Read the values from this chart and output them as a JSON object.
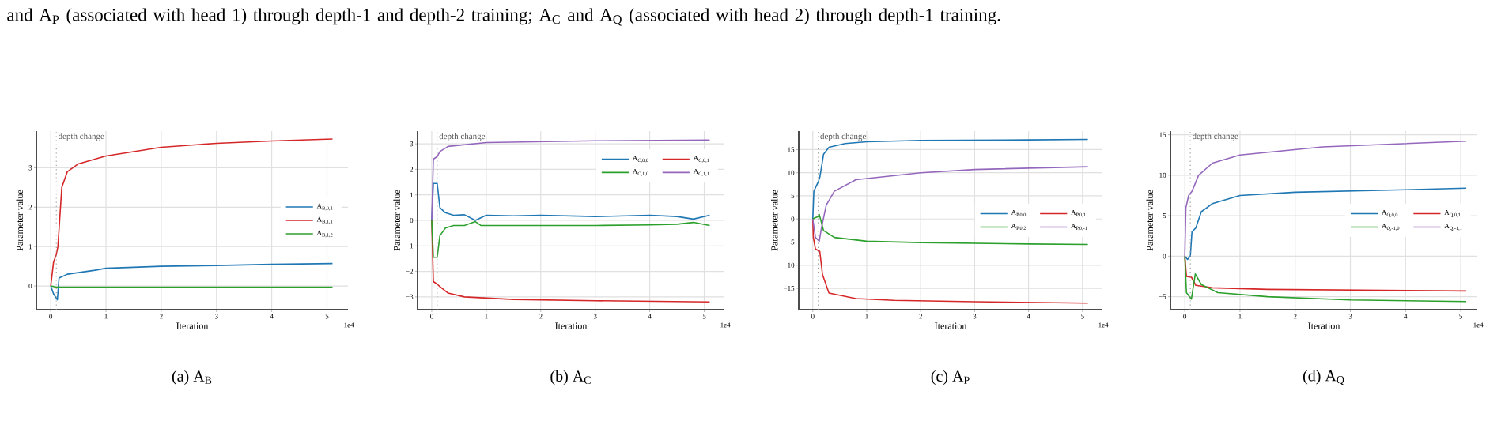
{
  "chart_data": [
    {
      "type": "line",
      "title": "(a) A$_{B}$",
      "xlabel": "Iteration",
      "ylabel": "Parameter value",
      "annotations": [
        "and A$_{P}$ (associated with head 1) through depth-1 and depth-2 training; A$_{C}$ and A$_{Q}$ (associated with head 2) through depth-1 training.",
        "1e4"
      ],
      "xlim": [
        -0.26,
        5.38
      ],
      "ylim": [
        -0.6,
        3.93
      ],
      "xticks": [
        0,
        1,
        2,
        3,
        4,
        5
      ],
      "yticks": [
        0,
        1,
        2,
        3
      ],
      "grid": true,
      "legend": "right",
      "ref_lines": [
        {
          "axis": "x",
          "value": 0.1,
          "label": "depth change",
          "color": "#999999",
          "line_style": "dotted"
        }
      ],
      "series": [
        {
          "name": "A$_{B,0,1}$",
          "color": "#1f77b4",
          "x": [
            0,
            0.05,
            0.12,
            0.15,
            0.3,
            0.8,
            1,
            2,
            3,
            4,
            5.1
          ],
          "values": [
            0,
            -0.2,
            -0.35,
            0.2,
            0.3,
            0.4,
            0.45,
            0.5,
            0.52,
            0.55,
            0.57
          ]
        },
        {
          "name": "A$_{B,1,1}$",
          "color": "#d62728",
          "x": [
            0,
            0.05,
            0.1,
            0.13,
            0.2,
            0.3,
            0.5,
            1,
            2,
            3,
            4,
            5.1
          ],
          "values": [
            0,
            0.6,
            0.8,
            1.0,
            2.5,
            2.9,
            3.1,
            3.3,
            3.52,
            3.62,
            3.68,
            3.73
          ]
        },
        {
          "name": "A$_{B,1,2}$",
          "color": "#2ca02c",
          "x": [
            0,
            0.1,
            5.1
          ],
          "values": [
            0,
            -0.03,
            -0.03
          ]
        }
      ]
    },
    {
      "type": "line",
      "title": "(b) A$_{C}$",
      "xlabel": "Iteration",
      "ylabel": "Parameter value",
      "annotations": [
        "1e4"
      ],
      "xlim": [
        -0.26,
        5.37
      ],
      "ylim": [
        -3.5,
        3.5
      ],
      "xticks": [
        0,
        1,
        2,
        3,
        4,
        5
      ],
      "yticks": [
        {
          "value": -3,
          "label": "−3"
        },
        {
          "value": -2,
          "label": "−2"
        },
        {
          "value": -1,
          "label": "−1"
        },
        0,
        1,
        2,
        3
      ],
      "grid": true,
      "legend": "top right",
      "ref_lines": [
        {
          "axis": "x",
          "value": 0.1,
          "label": "depth change",
          "color": "#999999",
          "line_style": "dotted"
        }
      ],
      "series": [
        {
          "name": "A$_{C,0,0}$",
          "color": "#1f77b4",
          "x": [
            0,
            0.03,
            0.1,
            0.15,
            0.25,
            0.4,
            0.6,
            0.8,
            1,
            1.5,
            2,
            3,
            4,
            4.5,
            4.8,
            5.1
          ],
          "values": [
            0,
            1.45,
            1.45,
            0.5,
            0.3,
            0.2,
            0.22,
            0.0,
            0.2,
            0.18,
            0.2,
            0.15,
            0.2,
            0.15,
            0.05,
            0.2
          ]
        },
        {
          "name": "A$_{C,0,1}$",
          "color": "#d62728",
          "x": [
            0,
            0.03,
            0.1,
            0.15,
            0.3,
            0.6,
            1.5,
            3,
            5.1
          ],
          "values": [
            0,
            -2.4,
            -2.5,
            -2.6,
            -2.85,
            -3.0,
            -3.1,
            -3.15,
            -3.2
          ]
        },
        {
          "name": "A$_{C,1,0}$",
          "color": "#2ca02c",
          "x": [
            0,
            0.03,
            0.1,
            0.15,
            0.25,
            0.4,
            0.6,
            0.8,
            0.9,
            1.5,
            2,
            3,
            4,
            4.5,
            4.8,
            5.1
          ],
          "values": [
            0,
            -1.45,
            -1.45,
            -0.6,
            -0.3,
            -0.2,
            -0.2,
            -0.05,
            -0.2,
            -0.2,
            -0.2,
            -0.2,
            -0.18,
            -0.15,
            -0.08,
            -0.2
          ]
        },
        {
          "name": "A$_{C,1,1}$",
          "color": "#9467bd",
          "x": [
            0,
            0.03,
            0.1,
            0.15,
            0.3,
            1,
            3,
            5.1
          ],
          "values": [
            0,
            2.4,
            2.5,
            2.7,
            2.9,
            3.05,
            3.12,
            3.15
          ]
        }
      ]
    },
    {
      "type": "line",
      "title": "(c) A$_{P}$",
      "xlabel": "Iteration",
      "ylabel": "Parameter value",
      "annotations": [
        "1e4"
      ],
      "xlim": [
        -0.26,
        5.37
      ],
      "ylim": [
        -19.6,
        19.0
      ],
      "xticks": [
        0,
        1,
        2,
        3,
        4,
        5
      ],
      "yticks": [
        {
          "value": -15,
          "label": "−15"
        },
        {
          "value": -10,
          "label": "−10"
        },
        {
          "value": -5,
          "label": "−5"
        },
        0,
        5,
        10,
        15
      ],
      "grid": true,
      "legend": "right",
      "ref_lines": [
        {
          "axis": "x",
          "value": 0.1,
          "label": "depth change",
          "color": "#999999",
          "line_style": "dotted"
        }
      ],
      "series": [
        {
          "name": "A$_{P,0,0}$",
          "color": "#1f77b4",
          "x": [
            0,
            0.02,
            0.1,
            0.13,
            0.2,
            0.3,
            0.6,
            1,
            2,
            4,
            5.1
          ],
          "values": [
            0,
            6,
            8,
            9,
            14,
            15.5,
            16.3,
            16.7,
            17,
            17.1,
            17.2
          ]
        },
        {
          "name": "A$_{P,0,1}$",
          "color": "#d62728",
          "x": [
            0,
            0.01,
            0.05,
            0.13,
            0.18,
            0.3,
            0.8,
            1.5,
            3,
            5.1
          ],
          "values": [
            0,
            -4,
            -6.5,
            -7,
            -12,
            -16,
            -17.2,
            -17.6,
            -17.9,
            -18.2
          ]
        },
        {
          "name": "A$_{P,0,2}$",
          "color": "#2ca02c",
          "x": [
            0,
            0.05,
            0.1,
            0.12,
            0.2,
            0.4,
            1,
            2,
            4,
            5.1
          ],
          "values": [
            0,
            0.3,
            0.5,
            1,
            -2.5,
            -4,
            -4.8,
            -5.1,
            -5.4,
            -5.5
          ]
        },
        {
          "name": "A$_{P,0,-1}$",
          "color": "#9467bd",
          "x": [
            0,
            0.05,
            0.12,
            0.16,
            0.25,
            0.4,
            0.8,
            2,
            3,
            5.1
          ],
          "values": [
            0,
            -4,
            -4.8,
            -2,
            3,
            6,
            8.5,
            10,
            10.7,
            11.3
          ]
        }
      ]
    },
    {
      "type": "line",
      "title": "(d) A$_{Q}$",
      "xlabel": "Iteration",
      "ylabel": "Parameter value",
      "annotations": [
        "1e4"
      ],
      "xlim": [
        -0.26,
        5.3
      ],
      "ylim": [
        -6.6,
        15.45
      ],
      "xticks": [
        0,
        1,
        2,
        3,
        4,
        5
      ],
      "yticks": [
        {
          "value": -5,
          "label": "−5"
        },
        0,
        5,
        10,
        15
      ],
      "grid": true,
      "legend": "right",
      "ref_lines": [
        {
          "axis": "x",
          "value": 0.1,
          "label": "depth change",
          "color": "#999999",
          "line_style": "dotted"
        }
      ],
      "series": [
        {
          "name": "A$_{Q,0,0}$",
          "color": "#1f77b4",
          "x": [
            0,
            0.05,
            0.1,
            0.13,
            0.2,
            0.3,
            0.5,
            1,
            2,
            4,
            5.1
          ],
          "values": [
            0,
            -0.4,
            0,
            3,
            3.5,
            5.5,
            6.5,
            7.5,
            7.9,
            8.2,
            8.4
          ]
        },
        {
          "name": "A$_{Q,0,1}$",
          "color": "#d62728",
          "x": [
            0,
            0.03,
            0.12,
            0.2,
            0.5,
            1.5,
            5.1
          ],
          "values": [
            0,
            -2.5,
            -2.6,
            -3.6,
            -3.9,
            -4.1,
            -4.3
          ]
        },
        {
          "name": "A$_{Q,-1,0}$",
          "color": "#2ca02c",
          "x": [
            0,
            0.03,
            0.12,
            0.19,
            0.3,
            0.6,
            1.5,
            3,
            5.1
          ],
          "values": [
            0,
            -4.5,
            -5.3,
            -2.2,
            -3.5,
            -4.5,
            -5.0,
            -5.4,
            -5.6
          ]
        },
        {
          "name": "A$_{Q,-1,1}$",
          "color": "#9467bd",
          "x": [
            0,
            0.02,
            0.07,
            0.13,
            0.25,
            0.5,
            1,
            2.5,
            5.1
          ],
          "values": [
            0,
            6,
            7.5,
            8,
            10,
            11.5,
            12.5,
            13.5,
            14.2
          ]
        }
      ]
    }
  ]
}
